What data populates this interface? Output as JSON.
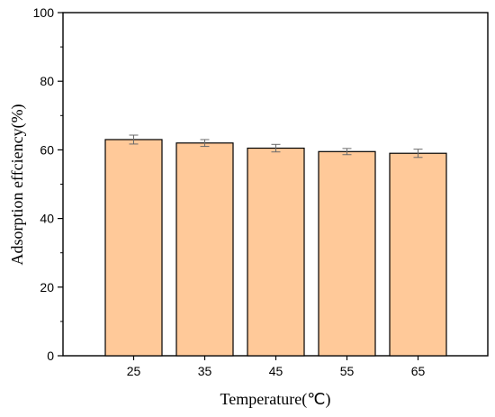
{
  "chart_data": {
    "type": "bar",
    "title": "",
    "xlabel": "Temperature(℃)",
    "ylabel": "Adsorption effciency(%)",
    "categories": [
      "25",
      "35",
      "45",
      "55",
      "65"
    ],
    "values": [
      63.0,
      62.0,
      60.5,
      59.5,
      59.0
    ],
    "error": [
      1.3,
      1.0,
      1.1,
      0.9,
      1.2
    ],
    "ylim": [
      0,
      100
    ],
    "yticks": [
      0,
      20,
      40,
      60,
      80,
      100
    ],
    "grid": false,
    "legend": "none",
    "colors": {
      "bar_fill": "#FFC999",
      "bar_stroke": "#000000",
      "error_bar": "#6b6b6b",
      "axis": "#000000"
    }
  }
}
